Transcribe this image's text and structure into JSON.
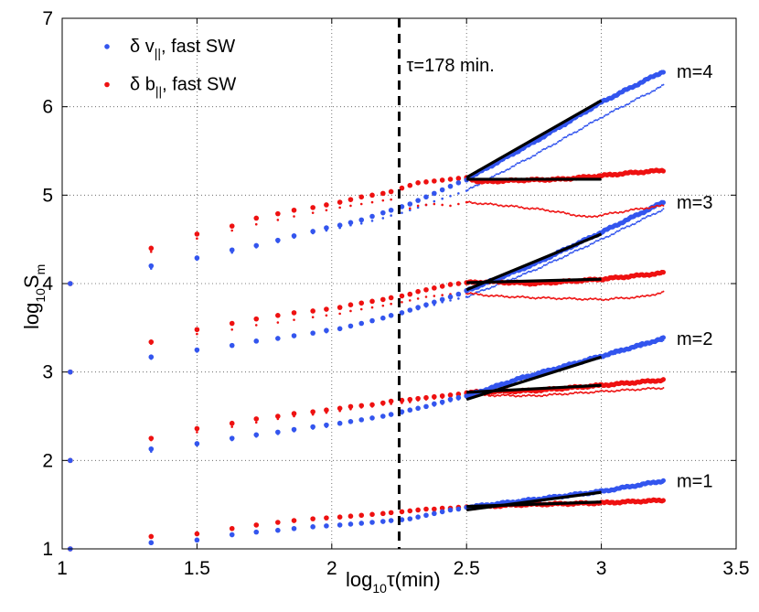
{
  "chart_data": {
    "type": "scatter",
    "title": "",
    "xlabel": {
      "prefix": "log",
      "sub": "10",
      "rest": "τ(min)"
    },
    "ylabel": {
      "prefix": "log",
      "sub": "10",
      "mid": "S",
      "sub2": "m"
    },
    "xlim": [
      1,
      3.5
    ],
    "ylim": [
      1,
      7
    ],
    "xticks": [
      1,
      1.5,
      2,
      2.5,
      3,
      3.5
    ],
    "yticks": [
      1,
      2,
      3,
      4,
      5,
      6,
      7
    ],
    "xtick_labels": [
      "1",
      "1.5",
      "2",
      "2.5",
      "3",
      "3.5"
    ],
    "ytick_labels": [
      "1",
      "2",
      "3",
      "4",
      "5",
      "6",
      "7"
    ],
    "grid": true,
    "vline": {
      "x": 2.25,
      "label": "τ=178 min."
    },
    "legend": {
      "position": "top-left",
      "entries": [
        {
          "text_a": "δ v",
          "sub": "||",
          "text_b": ", fast SW",
          "color": "#3355ee"
        },
        {
          "text_a": "δ b",
          "sub": "||",
          "text_b": ", fast SW",
          "color": "#ee1111"
        }
      ]
    },
    "colors": {
      "v": "#3355ee",
      "b": "#ee1111",
      "fit": "#000000"
    },
    "x_sample": [
      1.03,
      1.33,
      1.5,
      1.63,
      1.72,
      1.8,
      1.86,
      1.93,
      1.98,
      2.03,
      2.07,
      2.11,
      2.15,
      2.19,
      2.22,
      2.26,
      2.29,
      2.32,
      2.35,
      2.38,
      2.41,
      2.44,
      2.47,
      2.5
    ],
    "x_dense_range": [
      2.5,
      3.23
    ],
    "groups": [
      {
        "m": 1,
        "label": "m=1",
        "v_thick_dots": [
          1.0,
          1.07,
          1.1,
          1.16,
          1.19,
          1.21,
          1.23,
          1.25,
          1.26,
          1.27,
          1.28,
          1.29,
          1.3,
          1.31,
          1.32,
          1.33,
          1.34,
          1.36,
          1.38,
          1.4,
          1.42,
          1.44,
          1.45,
          1.47
        ],
        "b_thick_dots": [
          1.0,
          1.14,
          1.17,
          1.23,
          1.27,
          1.3,
          1.32,
          1.34,
          1.35,
          1.36,
          1.37,
          1.38,
          1.39,
          1.4,
          1.41,
          1.42,
          1.43,
          1.44,
          1.45,
          1.45,
          1.46,
          1.46,
          1.47,
          1.47
        ],
        "v_thick_line": [
          [
            2.5,
            1.47
          ],
          [
            2.7,
            1.54
          ],
          [
            3.0,
            1.65
          ],
          [
            3.23,
            1.77
          ]
        ],
        "b_thick_line": [
          [
            2.5,
            1.47
          ],
          [
            2.7,
            1.5
          ],
          [
            3.0,
            1.52
          ],
          [
            3.23,
            1.55
          ]
        ],
        "fits": [
          [
            [
              2.5,
              1.44
            ],
            [
              3.0,
              1.64
            ]
          ],
          [
            [
              2.5,
              1.48
            ],
            [
              3.0,
              1.53
            ]
          ]
        ]
      },
      {
        "m": 2,
        "label": "m=2",
        "v_thick_dots": [
          2.0,
          2.13,
          2.19,
          2.25,
          2.29,
          2.32,
          2.35,
          2.38,
          2.4,
          2.42,
          2.44,
          2.46,
          2.48,
          2.5,
          2.52,
          2.55,
          2.57,
          2.59,
          2.61,
          2.64,
          2.66,
          2.69,
          2.71,
          2.73
        ],
        "b_thick_dots": [
          2.0,
          2.25,
          2.36,
          2.42,
          2.47,
          2.5,
          2.53,
          2.55,
          2.57,
          2.59,
          2.61,
          2.62,
          2.63,
          2.65,
          2.67,
          2.68,
          2.69,
          2.7,
          2.71,
          2.72,
          2.73,
          2.74,
          2.75,
          2.76
        ],
        "v_thin_dots": [
          2.0,
          2.1,
          2.17,
          2.23,
          2.27,
          2.3,
          2.33,
          2.36,
          2.38,
          2.41,
          2.43,
          2.45,
          2.47,
          2.49,
          2.51,
          2.53,
          2.56,
          2.58,
          2.6,
          2.62,
          2.64,
          2.67,
          2.69,
          2.71
        ],
        "b_thin_dots": [
          2.0,
          2.23,
          2.32,
          2.38,
          2.43,
          2.47,
          2.5,
          2.52,
          2.54,
          2.56,
          2.58,
          2.6,
          2.61,
          2.63,
          2.64,
          2.65,
          2.66,
          2.68,
          2.69,
          2.7,
          2.71,
          2.72,
          2.73,
          2.74
        ],
        "v_thick_line": [
          [
            2.5,
            2.73
          ],
          [
            2.7,
            2.93
          ],
          [
            3.0,
            3.18
          ],
          [
            3.23,
            3.38
          ]
        ],
        "b_thick_line": [
          [
            2.5,
            2.77
          ],
          [
            2.75,
            2.79
          ],
          [
            3.0,
            2.85
          ],
          [
            3.23,
            2.91
          ]
        ],
        "v_thin_line": [
          [
            2.5,
            2.71
          ],
          [
            2.7,
            2.92
          ],
          [
            3.0,
            3.17
          ],
          [
            3.23,
            3.36
          ]
        ],
        "b_thin_line": [
          [
            2.5,
            2.74
          ],
          [
            2.75,
            2.73
          ],
          [
            3.0,
            2.78
          ],
          [
            3.23,
            2.82
          ]
        ],
        "fits": [
          [
            [
              2.5,
              2.69
            ],
            [
              3.0,
              3.17
            ]
          ],
          [
            [
              2.5,
              2.77
            ],
            [
              3.0,
              2.85
            ]
          ]
        ]
      },
      {
        "m": 3,
        "label": "m=3",
        "v_thick_dots": [
          3.0,
          3.17,
          3.25,
          3.3,
          3.35,
          3.38,
          3.41,
          3.44,
          3.47,
          3.49,
          3.52,
          3.55,
          3.58,
          3.61,
          3.64,
          3.67,
          3.7,
          3.73,
          3.76,
          3.79,
          3.82,
          3.85,
          3.88,
          3.92
        ],
        "b_thick_dots": [
          3.0,
          3.34,
          3.48,
          3.55,
          3.6,
          3.64,
          3.67,
          3.69,
          3.71,
          3.73,
          3.76,
          3.78,
          3.8,
          3.82,
          3.84,
          3.86,
          3.88,
          3.91,
          3.93,
          3.95,
          3.97,
          3.99,
          4.0,
          4.01
        ],
        "v_thin_dots": [
          3.0,
          3.15,
          3.23,
          3.29,
          3.34,
          3.37,
          3.4,
          3.43,
          3.45,
          3.48,
          3.51,
          3.54,
          3.57,
          3.6,
          3.63,
          3.66,
          3.69,
          3.71,
          3.74,
          3.76,
          3.79,
          3.81,
          3.83,
          3.85
        ],
        "b_thin_dots": [
          3.0,
          3.32,
          3.43,
          3.48,
          3.53,
          3.56,
          3.59,
          3.62,
          3.64,
          3.66,
          3.69,
          3.71,
          3.73,
          3.75,
          3.77,
          3.79,
          3.81,
          3.83,
          3.85,
          3.86,
          3.87,
          3.88,
          3.88,
          3.89
        ],
        "v_thick_line": [
          [
            2.5,
            3.92
          ],
          [
            2.75,
            4.22
          ],
          [
            3.0,
            4.58
          ],
          [
            3.23,
            4.92
          ]
        ],
        "b_thick_line": [
          [
            2.5,
            4.01
          ],
          [
            2.6,
            4.02
          ],
          [
            2.75,
            4.0
          ],
          [
            3.0,
            4.05
          ],
          [
            3.1,
            4.08
          ],
          [
            3.23,
            4.12
          ]
        ],
        "v_thin_line": [
          [
            2.5,
            3.85
          ],
          [
            2.75,
            4.15
          ],
          [
            3.0,
            4.5
          ],
          [
            3.23,
            4.84
          ]
        ],
        "b_thin_line": [
          [
            2.5,
            3.89
          ],
          [
            2.6,
            3.86
          ],
          [
            2.75,
            3.84
          ],
          [
            3.0,
            3.82
          ],
          [
            3.15,
            3.85
          ],
          [
            3.23,
            3.9
          ]
        ],
        "fits": [
          [
            [
              2.5,
              3.93
            ],
            [
              3.0,
              4.56
            ]
          ],
          [
            [
              2.5,
              4.01
            ],
            [
              3.0,
              4.05
            ]
          ]
        ]
      },
      {
        "m": 4,
        "label": "m=4",
        "v_thick_dots": [
          4.0,
          4.2,
          4.29,
          4.38,
          4.43,
          4.49,
          4.54,
          4.59,
          4.63,
          4.66,
          4.69,
          4.72,
          4.76,
          4.8,
          4.83,
          4.87,
          4.9,
          4.94,
          4.98,
          5.02,
          5.06,
          5.1,
          5.14,
          5.18
        ],
        "b_thick_dots": [
          4.0,
          4.4,
          4.56,
          4.65,
          4.74,
          4.79,
          4.83,
          4.86,
          4.89,
          4.92,
          4.95,
          4.98,
          5.0,
          5.02,
          5.04,
          5.08,
          5.11,
          5.14,
          5.15,
          5.16,
          5.17,
          5.18,
          5.19,
          5.2
        ],
        "v_thin_dots": [
          4.0,
          4.17,
          4.27,
          4.35,
          4.41,
          4.47,
          4.52,
          4.57,
          4.6,
          4.63,
          4.66,
          4.68,
          4.71,
          4.74,
          4.77,
          4.8,
          4.83,
          4.86,
          4.89,
          4.93,
          4.96,
          4.99,
          5.02,
          5.05
        ],
        "b_thin_dots": [
          4.0,
          4.36,
          4.51,
          4.6,
          4.67,
          4.72,
          4.76,
          4.8,
          4.83,
          4.86,
          4.88,
          4.9,
          4.92,
          4.94,
          4.95,
          4.87,
          4.85,
          4.88,
          4.89,
          4.9,
          4.89,
          4.88,
          4.9,
          4.92
        ],
        "v_thick_line": [
          [
            2.5,
            5.18
          ],
          [
            2.75,
            5.6
          ],
          [
            3.0,
            6.05
          ],
          [
            3.23,
            6.4
          ]
        ],
        "b_thick_line": [
          [
            2.5,
            5.2
          ],
          [
            2.55,
            5.15
          ],
          [
            2.7,
            5.17
          ],
          [
            2.85,
            5.18
          ],
          [
            3.0,
            5.22
          ],
          [
            3.1,
            5.25
          ],
          [
            3.23,
            5.28
          ]
        ],
        "v_thin_line": [
          [
            2.5,
            5.05
          ],
          [
            2.75,
            5.45
          ],
          [
            3.0,
            5.88
          ],
          [
            3.23,
            6.24
          ]
        ],
        "b_thin_line": [
          [
            2.5,
            4.92
          ],
          [
            2.65,
            4.88
          ],
          [
            2.8,
            4.83
          ],
          [
            2.95,
            4.75
          ],
          [
            3.05,
            4.8
          ],
          [
            3.15,
            4.85
          ],
          [
            3.23,
            4.88
          ]
        ],
        "fits": [
          [
            [
              2.5,
              5.2
            ],
            [
              3.0,
              6.07
            ]
          ],
          [
            [
              2.5,
              5.18
            ],
            [
              3.0,
              5.18
            ]
          ]
        ]
      }
    ]
  }
}
